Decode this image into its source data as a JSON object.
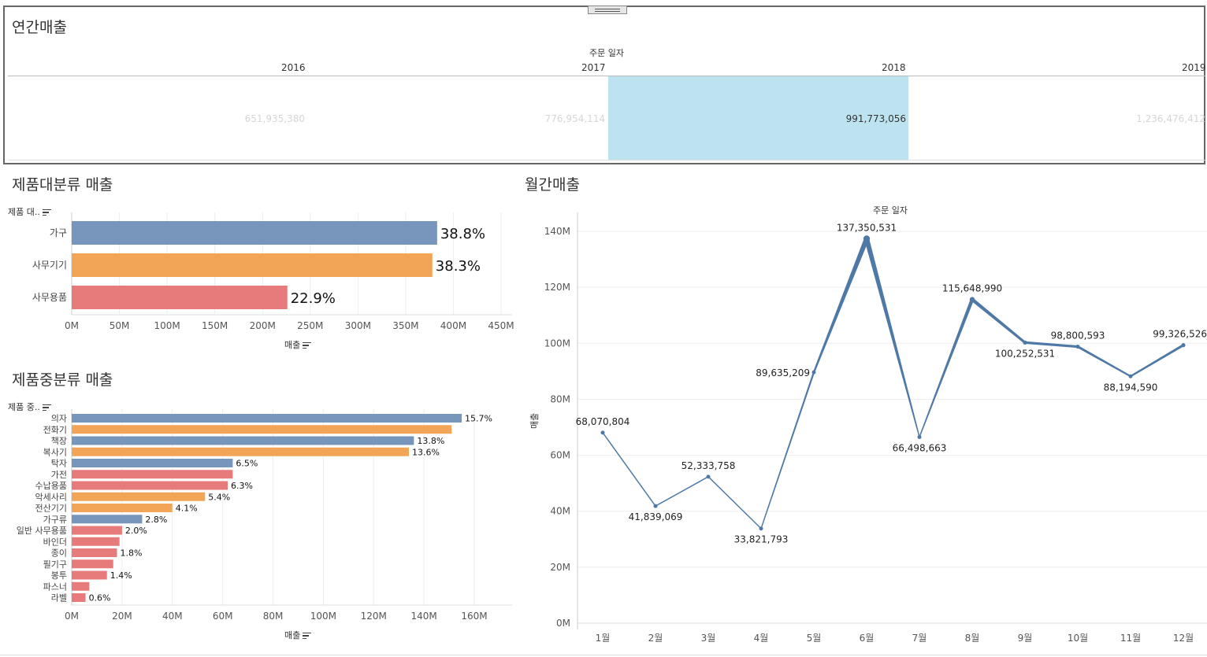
{
  "annual": {
    "title": "연간매출",
    "header": "주문 일자",
    "years": [
      "2016",
      "2017",
      "2018",
      "2019"
    ],
    "values": [
      "651,935,380",
      "776,954,114",
      "991,773,056",
      "1,236,476,412"
    ],
    "highlight_index": 2,
    "highlight_color": "#bde3f1"
  },
  "category": {
    "title": "제품대분류 매출",
    "axis_field": "제품 대..",
    "xlabel": "매출",
    "categories": [
      "가구",
      "사무기기",
      "사무용품"
    ],
    "values": [
      383000000,
      378000000,
      226000000
    ],
    "labels": [
      "38.8%",
      "38.3%",
      "22.9%"
    ],
    "colors": [
      "#7896bb",
      "#f2a557",
      "#e77a7a"
    ],
    "ticks": [
      "0M",
      "50M",
      "100M",
      "150M",
      "200M",
      "250M",
      "300M",
      "350M",
      "400M",
      "450M"
    ],
    "xlim": [
      0,
      450000000
    ]
  },
  "subcategory": {
    "title": "제품중분류 매출",
    "axis_field": "제품 중..",
    "xlabel": "매출",
    "categories": [
      "의자",
      "전화기",
      "책장",
      "복사기",
      "탁자",
      "가전",
      "수납용품",
      "악세사리",
      "전산기기",
      "가구류",
      "일반 사무용품",
      "바인더",
      "종이",
      "필기구",
      "봉투",
      "파스너",
      "라벨"
    ],
    "values": [
      155000000,
      151000000,
      136000000,
      134000000,
      64000000,
      64000000,
      62000000,
      53000000,
      40000000,
      28000000,
      20000000,
      19000000,
      18000000,
      16500000,
      14000000,
      7000000,
      5500000
    ],
    "labels": [
      "15.7%",
      "",
      "13.8%",
      "13.6%",
      "6.5%",
      "",
      "6.3%",
      "5.4%",
      "4.1%",
      "2.8%",
      "2.0%",
      "",
      "1.8%",
      "",
      "1.4%",
      "",
      "0.6%"
    ],
    "groups": [
      "가구",
      "사무기기",
      "가구",
      "사무기기",
      "가구",
      "사무용품",
      "사무용품",
      "사무기기",
      "사무기기",
      "가구",
      "사무용품",
      "사무용품",
      "사무용품",
      "사무용품",
      "사무용품",
      "사무용품",
      "사무용품"
    ],
    "ticks": [
      "0M",
      "20M",
      "40M",
      "60M",
      "80M",
      "100M",
      "120M",
      "140M",
      "160M"
    ],
    "xlim": [
      0,
      170000000
    ]
  },
  "chart_data": {
    "type": "line",
    "title": "월간매출",
    "header": "주문 일자",
    "ylabel": "매출",
    "categories": [
      "1월",
      "2월",
      "3월",
      "4월",
      "5월",
      "6월",
      "7월",
      "8월",
      "9월",
      "10월",
      "11월",
      "12월"
    ],
    "values": [
      68070804,
      41839069,
      52333758,
      33821793,
      89635209,
      137350531,
      66498663,
      115648990,
      100252531,
      98800593,
      88194590,
      99326526
    ],
    "labels": [
      "68,070,804",
      "41,839,069",
      "52,333,758",
      "33,821,793",
      "89,635,209",
      "137,350,531",
      "66,498,663",
      "115,648,990",
      "100,252,531",
      "98,800,593",
      "88,194,590",
      "99,326,526"
    ],
    "yticks": [
      "0M",
      "20M",
      "40M",
      "60M",
      "80M",
      "100M",
      "120M",
      "140M"
    ],
    "ylim": [
      0,
      140000000
    ],
    "color": "#4e79a7"
  }
}
